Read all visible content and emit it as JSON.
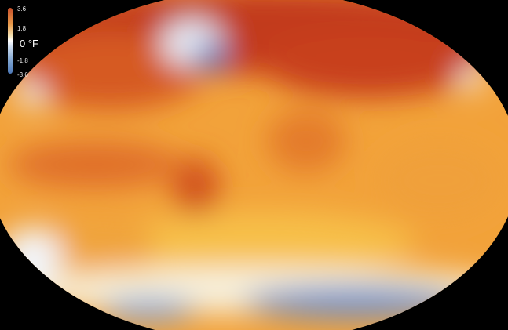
{
  "legend": {
    "unit": "°F",
    "ticks": [
      "3.6",
      "1.8",
      "0",
      "-1.8",
      "-3.6"
    ],
    "zero_label": "0 °F",
    "colors": {
      "warm_max": "#c8502a",
      "neutral": "#ffffff",
      "cool_max": "#4c78b8"
    }
  },
  "map": {
    "projection": "Robinson-like ellipse",
    "colors": {
      "deep_red": "#c0361a",
      "orange": "#ee8a2a",
      "yellow": "#f7c24a",
      "pale": "#fbeccc",
      "blue": "#5c82c4",
      "background": "#000000"
    }
  }
}
